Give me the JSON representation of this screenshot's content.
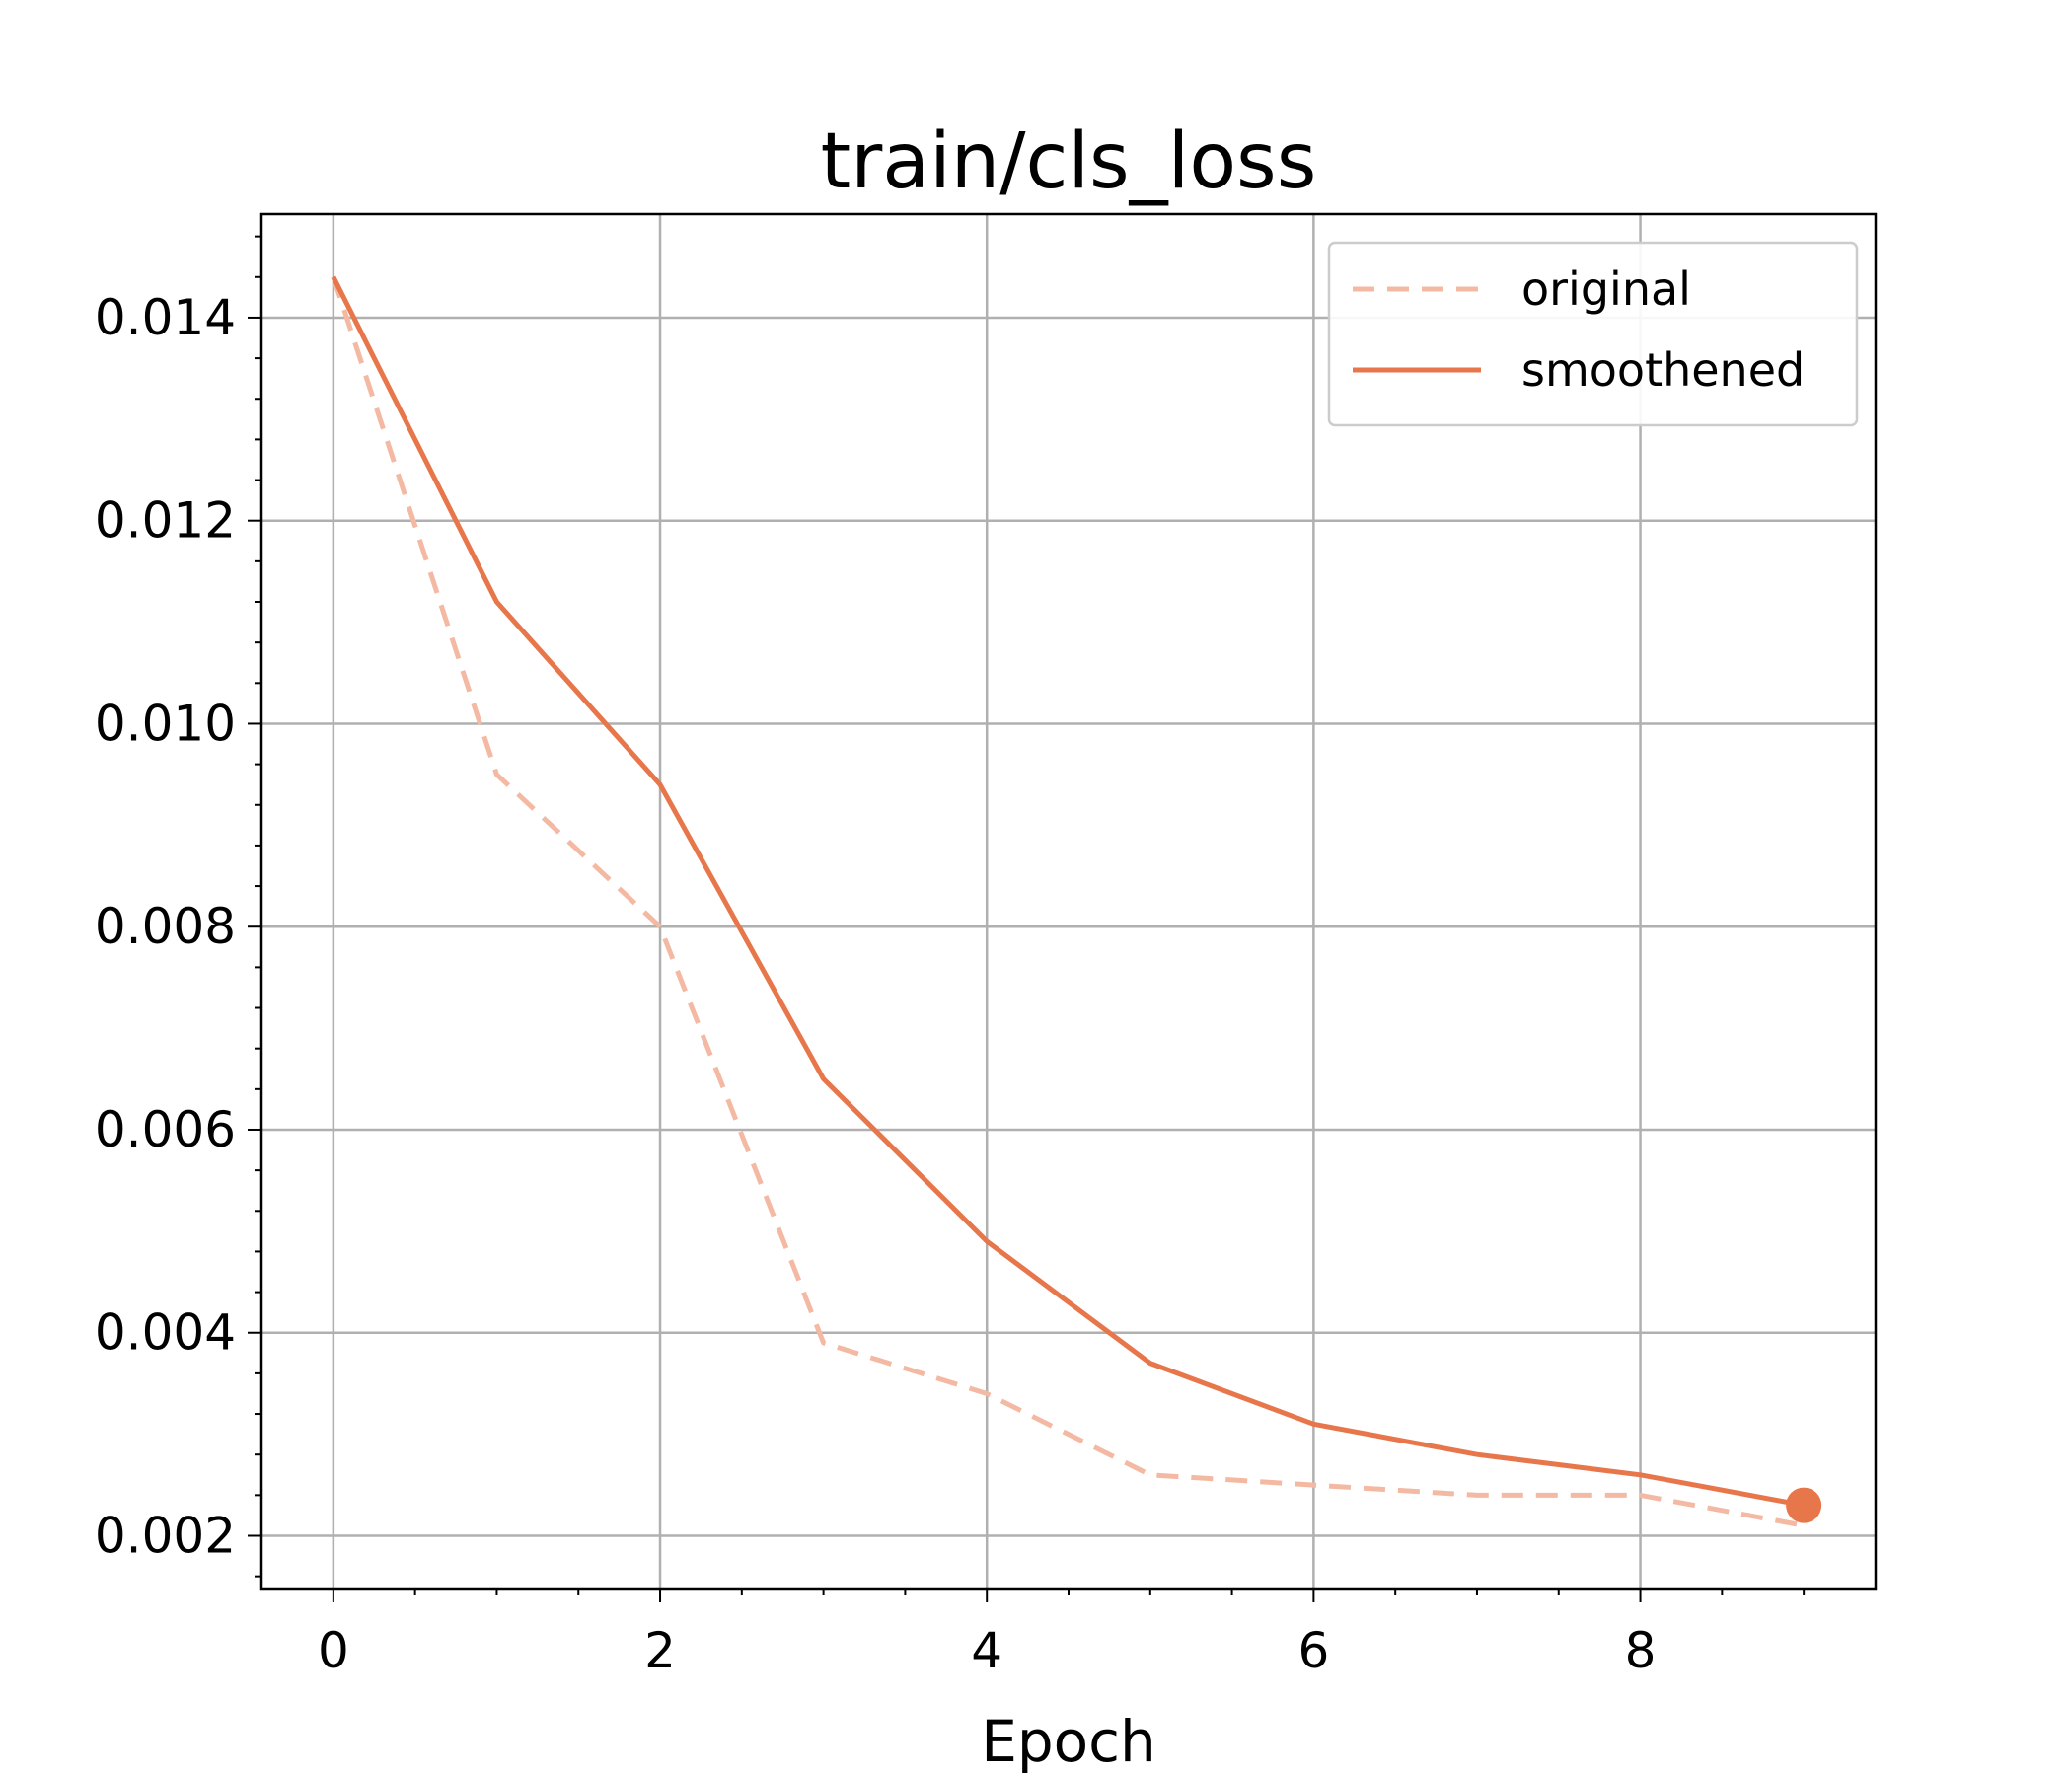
{
  "chart_data": {
    "type": "line",
    "title": "train/cls_loss",
    "xlabel": "Epoch",
    "ylabel": "",
    "xlim": [
      -0.44,
      9.44
    ],
    "ylim": [
      0.00148,
      0.01502
    ],
    "xticks": [
      0,
      2,
      4,
      6,
      8
    ],
    "xtick_labels": [
      "0",
      "2",
      "4",
      "6",
      "8"
    ],
    "yticks": [
      0.002,
      0.004,
      0.006,
      0.008,
      0.01,
      0.012,
      0.014
    ],
    "ytick_labels": [
      "0.002",
      "0.004",
      "0.006",
      "0.008",
      "0.010",
      "0.012",
      "0.014"
    ],
    "grid": true,
    "legend_position": "top-right",
    "x": [
      0,
      1,
      2,
      3,
      4,
      5,
      6,
      7,
      8,
      9
    ],
    "series": [
      {
        "name": "original",
        "style": "dashed",
        "color": "#f4b9a3",
        "values": [
          0.0144,
          0.0095,
          0.008,
          0.0039,
          0.0034,
          0.0026,
          0.0025,
          0.0024,
          0.0024,
          0.0021
        ]
      },
      {
        "name": "smoothened",
        "style": "solid",
        "color": "#e8764b",
        "values": [
          0.0144,
          0.0112,
          0.0094,
          0.0065,
          0.0049,
          0.0037,
          0.0031,
          0.0028,
          0.0026,
          0.0023
        ],
        "end_marker": true
      }
    ]
  }
}
